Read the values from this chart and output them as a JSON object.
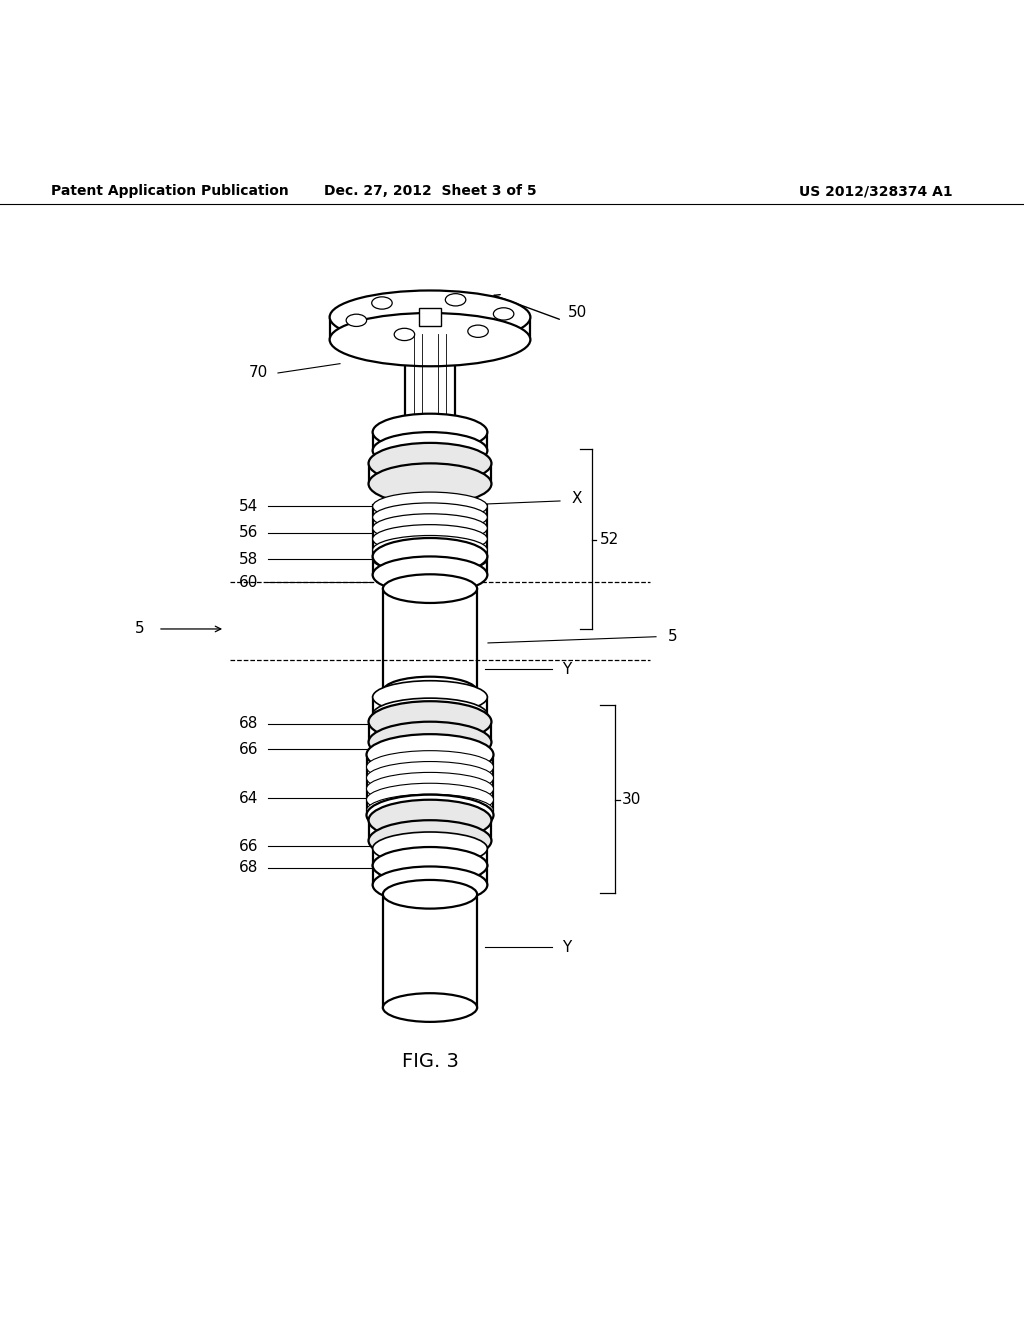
{
  "bg_color": "#ffffff",
  "header_left": "Patent Application Publication",
  "header_center": "Dec. 27, 2012  Sheet 3 of 5",
  "header_right": "US 2012/328374 A1",
  "figure_label": "FIG. 3"
}
